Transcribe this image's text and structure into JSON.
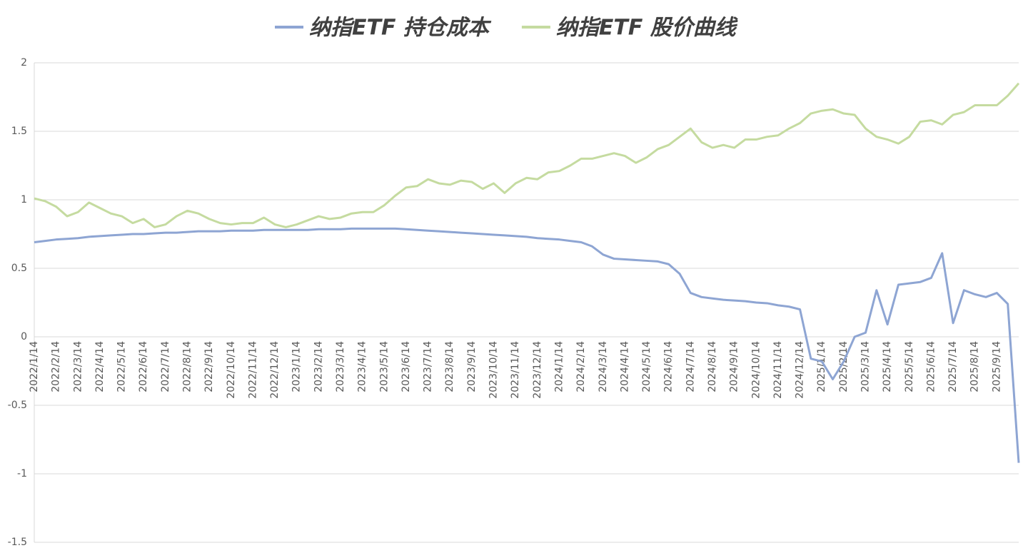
{
  "chart_data": {
    "type": "line",
    "categories": [
      "2022/1/14",
      null,
      "2022/2/14",
      null,
      "2022/3/14",
      null,
      "2022/4/14",
      null,
      "2022/5/14",
      null,
      "2022/6/14",
      null,
      "2022/7/14",
      null,
      "2022/8/14",
      null,
      "2022/9/14",
      null,
      "2022/10/14",
      null,
      "2022/11/14",
      null,
      "2022/12/14",
      null,
      "2023/1/14",
      null,
      "2023/2/14",
      null,
      "2023/3/14",
      null,
      "2023/4/14",
      null,
      "2023/5/14",
      null,
      "2023/6/14",
      null,
      "2023/7/14",
      null,
      "2023/8/14",
      null,
      "2023/9/14",
      null,
      "2023/10/14",
      null,
      "2023/11/14",
      null,
      "2023/12/14",
      null,
      "2024/1/14",
      null,
      "2024/2/14",
      null,
      "2024/3/14",
      null,
      "2024/4/14",
      null,
      "2024/5/14",
      null,
      "2024/6/14",
      null,
      "2024/7/14",
      null,
      "2024/8/14",
      null,
      "2024/9/14",
      null,
      "2024/10/14",
      null,
      "2024/11/14",
      null,
      "2024/12/14",
      null,
      "2025/1/14",
      null,
      "2025/2/14",
      null,
      "2025/3/14",
      null,
      "2025/4/14",
      null,
      "2025/5/14",
      null,
      "2025/6/14",
      null,
      "2025/7/14",
      null,
      "2025/8/14",
      null,
      "2025/9/14",
      null,
      null
    ],
    "series": [
      {
        "name": "纳指ETF 持仓成本",
        "color": "#8ea5d3",
        "values": [
          0.69,
          0.7,
          0.71,
          0.715,
          0.72,
          0.73,
          0.735,
          0.74,
          0.745,
          0.75,
          0.75,
          0.755,
          0.76,
          0.76,
          0.765,
          0.77,
          0.77,
          0.77,
          0.775,
          0.775,
          0.775,
          0.78,
          0.78,
          0.78,
          0.78,
          0.78,
          0.785,
          0.785,
          0.785,
          0.79,
          0.79,
          0.79,
          0.79,
          0.79,
          0.785,
          0.78,
          0.775,
          0.77,
          0.765,
          0.76,
          0.755,
          0.75,
          0.745,
          0.74,
          0.735,
          0.73,
          0.72,
          0.715,
          0.71,
          0.7,
          0.69,
          0.66,
          0.6,
          0.57,
          0.565,
          0.56,
          0.555,
          0.55,
          0.53,
          0.46,
          0.32,
          0.29,
          0.28,
          0.27,
          0.265,
          0.26,
          0.25,
          0.245,
          0.23,
          0.22,
          0.2,
          -0.16,
          -0.18,
          -0.31,
          -0.18,
          0.0,
          0.03,
          0.34,
          0.09,
          0.38,
          0.39,
          0.4,
          0.43,
          0.61,
          0.1,
          0.34,
          0.31,
          0.29,
          0.32,
          0.24,
          -0.92
        ]
      },
      {
        "name": "纳指ETF 股价曲线",
        "color": "#c5dba0",
        "values": [
          1.01,
          0.99,
          0.95,
          0.88,
          0.91,
          0.98,
          0.94,
          0.9,
          0.88,
          0.83,
          0.86,
          0.8,
          0.82,
          0.88,
          0.92,
          0.9,
          0.86,
          0.83,
          0.82,
          0.83,
          0.83,
          0.87,
          0.82,
          0.8,
          0.82,
          0.85,
          0.88,
          0.86,
          0.87,
          0.9,
          0.91,
          0.91,
          0.96,
          1.03,
          1.09,
          1.1,
          1.15,
          1.12,
          1.11,
          1.14,
          1.13,
          1.08,
          1.12,
          1.05,
          1.12,
          1.16,
          1.15,
          1.2,
          1.21,
          1.25,
          1.3,
          1.3,
          1.32,
          1.34,
          1.32,
          1.27,
          1.31,
          1.37,
          1.4,
          1.46,
          1.52,
          1.42,
          1.38,
          1.4,
          1.38,
          1.44,
          1.44,
          1.46,
          1.47,
          1.52,
          1.56,
          1.63,
          1.65,
          1.66,
          1.63,
          1.62,
          1.52,
          1.46,
          1.44,
          1.41,
          1.46,
          1.57,
          1.58,
          1.55,
          1.62,
          1.64,
          1.69,
          1.69,
          1.69,
          1.76,
          1.85
        ]
      }
    ],
    "ylim": [
      -1.5,
      2
    ],
    "yticks": [
      -1.5,
      -1,
      -0.5,
      0,
      0.5,
      1,
      1.5,
      2
    ],
    "grid": true,
    "legend": "top"
  }
}
